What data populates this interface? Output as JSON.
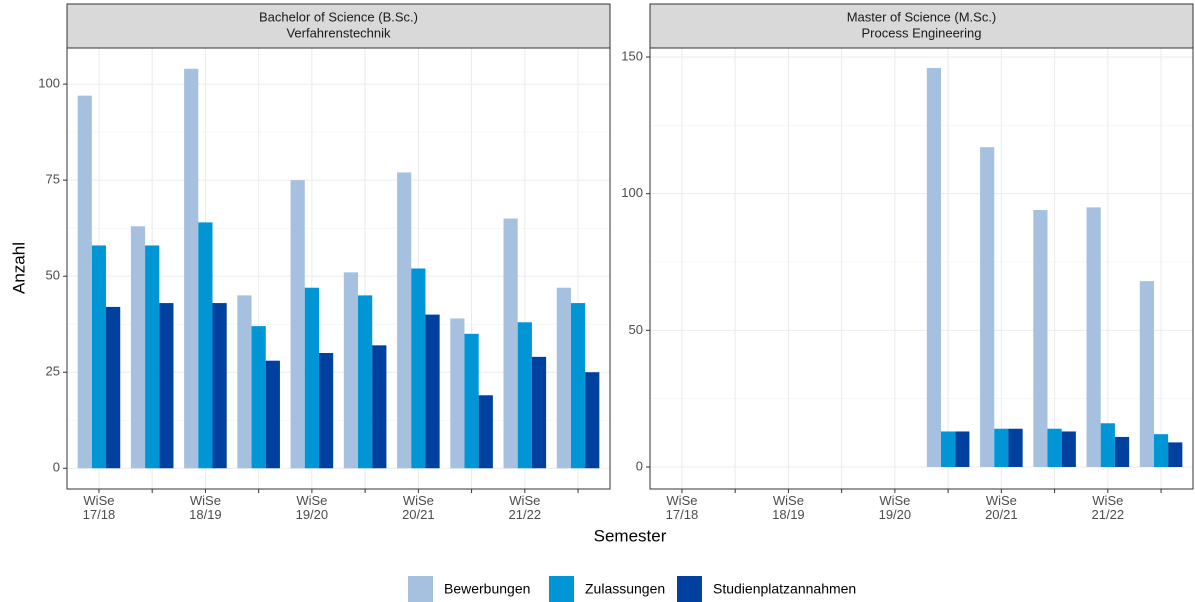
{
  "chart_data": [
    {
      "type": "bar",
      "title": "Bachelor of Science (B.Sc.)",
      "subtitle": "Verfahrenstechnik",
      "categories": [
        "WiSe 17/18",
        null,
        "WiSe 18/19",
        null,
        "WiSe 19/20",
        null,
        "WiSe 20/21",
        null,
        "WiSe 21/22",
        null
      ],
      "series": [
        {
          "values": [
            97,
            63,
            104,
            45,
            75,
            51,
            77,
            39,
            65,
            47
          ]
        },
        {
          "values": [
            58,
            58,
            64,
            37,
            47,
            45,
            52,
            35,
            38,
            43
          ]
        },
        {
          "values": [
            42,
            43,
            43,
            28,
            30,
            32,
            40,
            19,
            29,
            25
          ]
        }
      ],
      "ylim": [
        -5.4,
        109.4
      ],
      "yticks": [
        0,
        25,
        50,
        75,
        100
      ],
      "grid": true
    },
    {
      "type": "bar",
      "title": "Master of Science (M.Sc.)",
      "subtitle": "Process Engineering",
      "categories": [
        "WiSe 17/18",
        null,
        "WiSe 18/19",
        null,
        "WiSe 19/20",
        null,
        "WiSe 20/21",
        null,
        "WiSe 21/22",
        null
      ],
      "series": [
        {
          "values": [
            null,
            null,
            null,
            null,
            null,
            146,
            117,
            94,
            95,
            68
          ]
        },
        {
          "values": [
            null,
            null,
            null,
            null,
            null,
            13,
            14,
            14,
            16,
            12
          ]
        },
        {
          "values": [
            null,
            null,
            null,
            null,
            null,
            13,
            14,
            13,
            11,
            9
          ]
        }
      ],
      "ylim": [
        -8.05,
        153.3
      ],
      "yticks": [
        0,
        50,
        100,
        150
      ],
      "grid": true
    }
  ],
  "x_label": "Semester",
  "y_label": "Anzahl",
  "legend": {
    "position": "bottom",
    "entries": [
      {
        "name": "Bewerbungen",
        "color": "#a6c0df"
      },
      {
        "name": "Zulassungen",
        "color": "#0096d6"
      },
      {
        "name": "Studienplatzannahmen",
        "color": "#0041a0"
      }
    ]
  }
}
